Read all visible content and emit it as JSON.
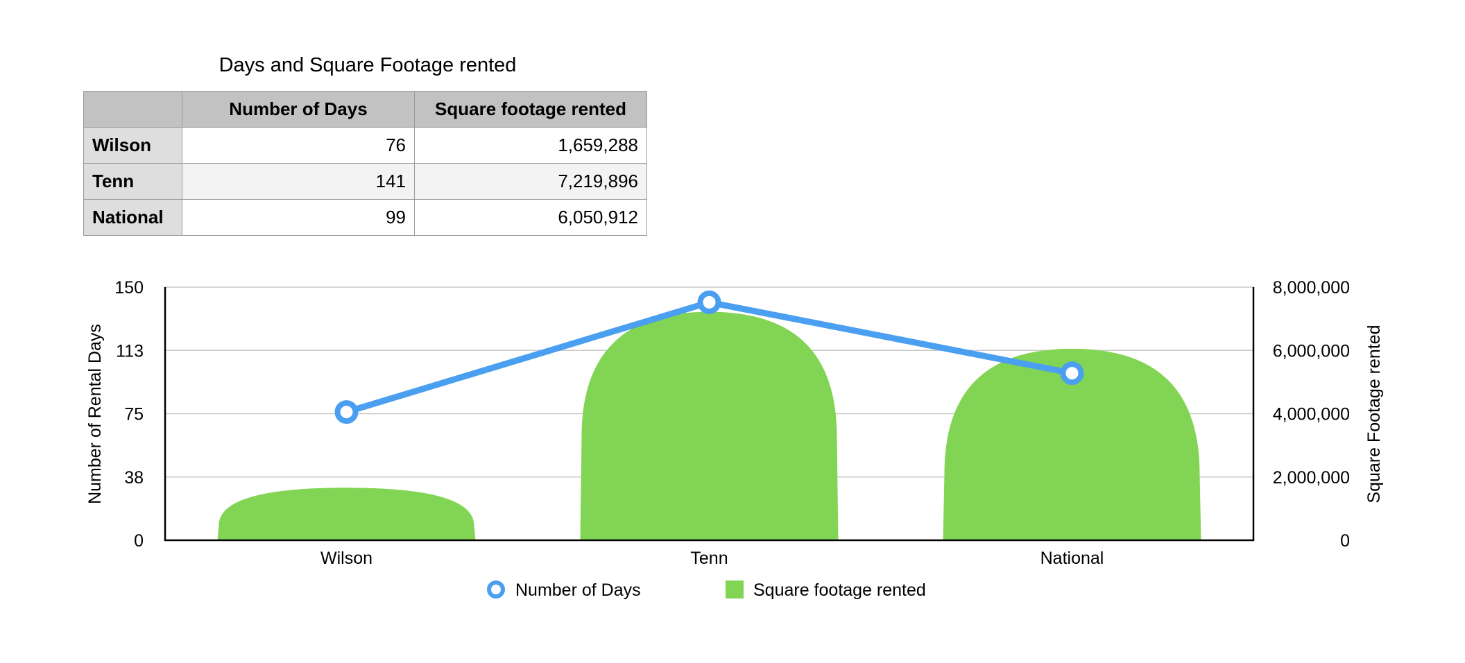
{
  "table": {
    "title": "Days and Square Footage rented",
    "headers": [
      "",
      "Number of Days",
      "Square footage rented"
    ],
    "rows": [
      {
        "label": "Wilson",
        "days": "76",
        "sqft": "1,659,288"
      },
      {
        "label": "Tenn",
        "days": "141",
        "sqft": "7,219,896"
      },
      {
        "label": "National",
        "days": "99",
        "sqft": "6,050,912"
      }
    ]
  },
  "chart_data": {
    "type": "bar",
    "categories": [
      "Wilson",
      "Tenn",
      "National"
    ],
    "series": [
      {
        "name": "Square footage rented",
        "kind": "bar",
        "axis": "right",
        "values": [
          1659288,
          7219896,
          6050912
        ],
        "color": "#82d454"
      },
      {
        "name": "Number of Days",
        "kind": "line",
        "axis": "left",
        "values": [
          76,
          141,
          99
        ],
        "color": "#4a9ff0"
      }
    ],
    "left_axis": {
      "label": "Number of Rental Days",
      "ticks": [
        "0",
        "38",
        "75",
        "113",
        "150"
      ],
      "range": [
        0,
        150
      ]
    },
    "right_axis": {
      "label": "Square Footage rented",
      "ticks": [
        "0",
        "2,000,000",
        "4,000,000",
        "6,000,000",
        "8,000,000"
      ],
      "range": [
        0,
        8000000
      ]
    },
    "grid": true,
    "legend": "bottom"
  }
}
